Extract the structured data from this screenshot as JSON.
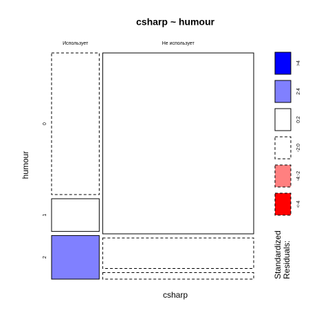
{
  "chart_data": {
    "type": "mosaic",
    "title": "csharp ~ humour",
    "x_label": "csharp",
    "y_label": "humour",
    "columns": [
      "Использует",
      "Не использует"
    ],
    "column_widths": [
      24,
      76
    ],
    "rows": [
      "0",
      "1",
      "2"
    ],
    "values": [
      [
        65,
        15,
        20
      ],
      [
        83,
        14,
        3
      ]
    ],
    "residual_class": [
      [
        3,
        2,
        1
      ],
      [
        2,
        3,
        3
      ]
    ],
    "legend": {
      "title": [
        "Standardized",
        "Residuals:"
      ],
      "labels": [
        ">4",
        "2:4",
        "0:2",
        "-2:0",
        "-4:-2",
        "<-4"
      ],
      "colors": [
        "#0000ff",
        "#8080ff",
        "#ffffff",
        "#ffffff",
        "#ff8080",
        "#ff0000"
      ],
      "dashed": [
        false,
        false,
        false,
        true,
        true,
        true
      ]
    }
  }
}
